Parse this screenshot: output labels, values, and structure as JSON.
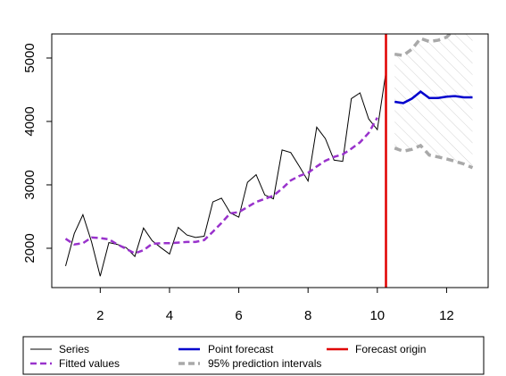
{
  "chart_data": {
    "type": "line",
    "title": "",
    "xlabel": "",
    "ylabel": "",
    "xlim": [
      0.6,
      13.2
    ],
    "ylim": [
      1380,
      5380
    ],
    "x_ticks": [
      2,
      4,
      6,
      8,
      10,
      12
    ],
    "y_ticks": [
      2000,
      3000,
      4000,
      5000
    ],
    "forecast_origin": 10.25,
    "colors": {
      "series": "#000000",
      "fitted": "#9932CC",
      "forecast": "#0000CD",
      "origin": "#E00000",
      "interval": "#A9A9A9",
      "hatch": "#D3D3D3"
    },
    "series": [
      {
        "name": "Series",
        "style": "solid",
        "x": [
          1.0,
          1.25,
          1.5,
          1.75,
          2.0,
          2.25,
          2.5,
          2.75,
          3.0,
          3.25,
          3.5,
          3.75,
          4.0,
          4.25,
          4.5,
          4.75,
          5.0,
          5.25,
          5.5,
          5.75,
          6.0,
          6.25,
          6.5,
          6.75,
          7.0,
          7.25,
          7.5,
          7.75,
          8.0,
          8.25,
          8.5,
          8.75,
          9.0,
          9.25,
          9.5,
          9.75,
          10.0,
          10.25
        ],
        "y": [
          1720,
          2230,
          2530,
          2100,
          1560,
          2090,
          2060,
          2010,
          1870,
          2320,
          2120,
          2010,
          1910,
          2330,
          2210,
          2170,
          2190,
          2730,
          2790,
          2560,
          2490,
          3040,
          3160,
          2840,
          2780,
          3550,
          3510,
          3290,
          3060,
          3910,
          3730,
          3390,
          3370,
          4360,
          4450,
          4040,
          3870,
          4780
        ]
      },
      {
        "name": "Fitted values",
        "style": "dashed",
        "x": [
          1.0,
          1.25,
          1.5,
          1.75,
          2.0,
          2.25,
          2.5,
          2.75,
          3.0,
          3.25,
          3.5,
          3.75,
          4.0,
          4.25,
          4.5,
          4.75,
          5.0,
          5.25,
          5.5,
          5.75,
          6.0,
          6.25,
          6.5,
          6.75,
          7.0,
          7.25,
          7.5,
          7.75,
          8.0,
          8.25,
          8.5,
          8.75,
          9.0,
          9.25,
          9.5,
          9.75,
          10.0
        ],
        "y": [
          2150,
          2060,
          2080,
          2170,
          2160,
          2140,
          2060,
          1990,
          1920,
          1970,
          2070,
          2080,
          2080,
          2090,
          2100,
          2100,
          2130,
          2260,
          2400,
          2550,
          2570,
          2650,
          2730,
          2780,
          2830,
          2940,
          3070,
          3140,
          3190,
          3290,
          3380,
          3440,
          3480,
          3570,
          3670,
          3820,
          4060
        ]
      },
      {
        "name": "Point forecast",
        "style": "solid",
        "x": [
          10.5,
          10.75,
          11.0,
          11.25,
          11.5,
          11.75,
          12.0,
          12.25,
          12.5,
          12.75
        ],
        "y": [
          4310,
          4290,
          4360,
          4470,
          4370,
          4370,
          4390,
          4400,
          4380,
          4380
        ]
      },
      {
        "name": "95% prediction intervals",
        "style": "dashed",
        "x": [
          10.5,
          10.75,
          11.0,
          11.25,
          11.5,
          11.75,
          12.0,
          12.25,
          12.5,
          12.75
        ],
        "upper": [
          5060,
          5040,
          5140,
          5310,
          5260,
          5280,
          5330,
          5460,
          5470,
          5500
        ],
        "lower": [
          3580,
          3530,
          3560,
          3620,
          3470,
          3440,
          3410,
          3370,
          3330,
          3270
        ]
      }
    ],
    "legend": {
      "placement": "bottom",
      "entries": [
        {
          "label": "Series",
          "style": "solid",
          "color": "#000000"
        },
        {
          "label": "Fitted values",
          "style": "dashed",
          "color": "#9932CC"
        },
        {
          "label": "Point forecast",
          "style": "solid",
          "color": "#0000CD"
        },
        {
          "label": "95% prediction intervals",
          "style": "dashed",
          "color": "#A9A9A9"
        },
        {
          "label": "Forecast origin",
          "style": "solid",
          "color": "#E00000"
        }
      ]
    }
  }
}
